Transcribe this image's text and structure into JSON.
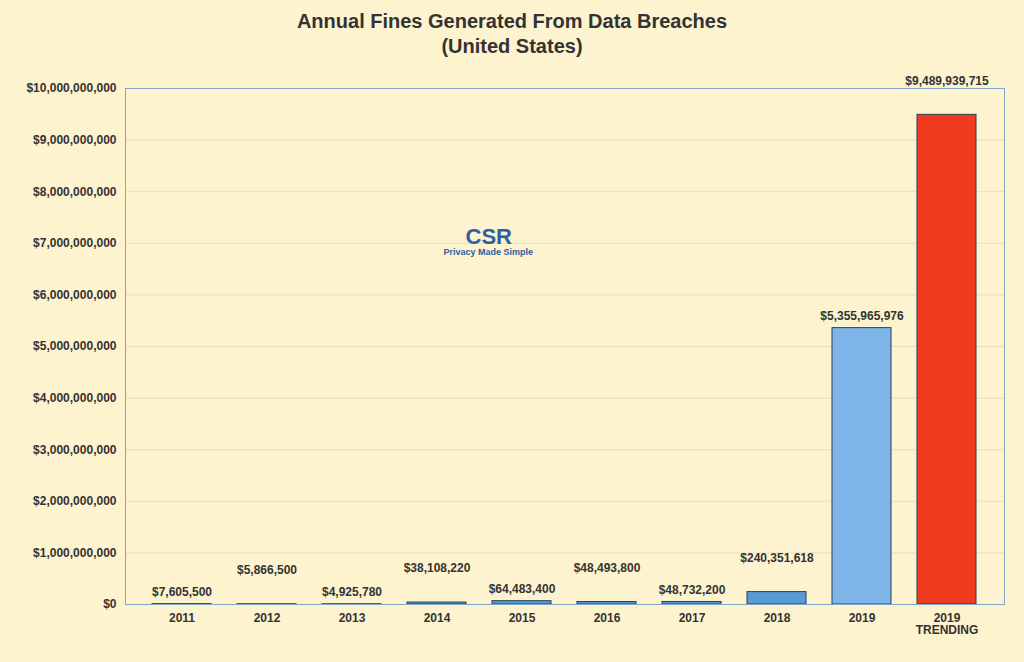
{
  "chart_data": {
    "type": "bar",
    "title": "Annual Fines Generated From Data Breaches",
    "subtitle": "(United States)",
    "categories": [
      "2011",
      "2012",
      "2013",
      "2014",
      "2015",
      "2016",
      "2017",
      "2018",
      "2019",
      "2019\nTRENDING"
    ],
    "values": [
      7605500,
      5866500,
      4925780,
      38108220,
      64483400,
      48493800,
      48732200,
      240351618,
      5355965976,
      9489939715
    ],
    "value_labels": [
      "$7,605,500",
      "$5,866,500",
      "$4,925,780",
      "$38,108,220",
      "$64,483,400",
      "$48,493,800",
      "$48,732,200",
      "$240,351,618",
      "$5,355,965,976",
      "$9,489,939,715"
    ],
    "colors": [
      "#5b9bd5",
      "#5b9bd5",
      "#5b9bd5",
      "#5b9bd5",
      "#5b9bd5",
      "#5b9bd5",
      "#5b9bd5",
      "#5b9bd5",
      "#7fb6ea",
      "#f03a1e"
    ],
    "ylim": [
      0,
      10000000000
    ],
    "yticks": [
      {
        "value": 0,
        "label": "$0"
      },
      {
        "value": 1000000000,
        "label": "$1,000,000,000"
      },
      {
        "value": 2000000000,
        "label": "$2,000,000,000"
      },
      {
        "value": 3000000000,
        "label": "$3,000,000,000"
      },
      {
        "value": 4000000000,
        "label": "$4,000,000,000"
      },
      {
        "value": 5000000000,
        "label": "$5,000,000,000"
      },
      {
        "value": 6000000000,
        "label": "$6,000,000,000"
      },
      {
        "value": 7000000000,
        "label": "$7,000,000,000"
      },
      {
        "value": 8000000000,
        "label": "$8,000,000,000"
      },
      {
        "value": 9000000000,
        "label": "$9,000,000,000"
      },
      {
        "value": 10000000000,
        "label": "$10,000,000,000"
      }
    ],
    "grid": true,
    "data_labels": true,
    "annotations": [
      "CSR",
      "Privacy Made Simple"
    ]
  }
}
